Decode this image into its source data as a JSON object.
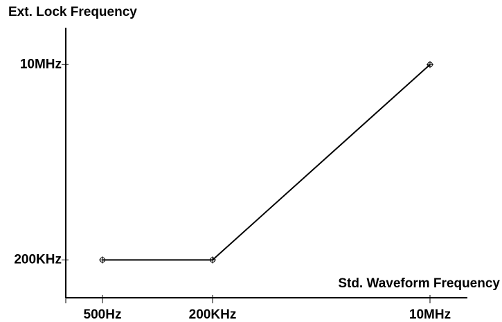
{
  "chart_data": {
    "type": "line",
    "y_label": "Ext. Lock Frequency",
    "x_label": "Std. Waveform Frequency",
    "categories": [
      "500Hz",
      "200KHz",
      "10MHz"
    ],
    "series": [
      {
        "name": "Ext. Lock Frequency",
        "color": "#000000",
        "values": [
          200000,
          200000,
          10000000
        ]
      }
    ],
    "ylim": [
      -1700000,
      11850000
    ],
    "yticks": [
      {
        "value": 200000,
        "label": "200KHz"
      },
      {
        "value": 10000000,
        "label": "10MHz"
      }
    ]
  }
}
